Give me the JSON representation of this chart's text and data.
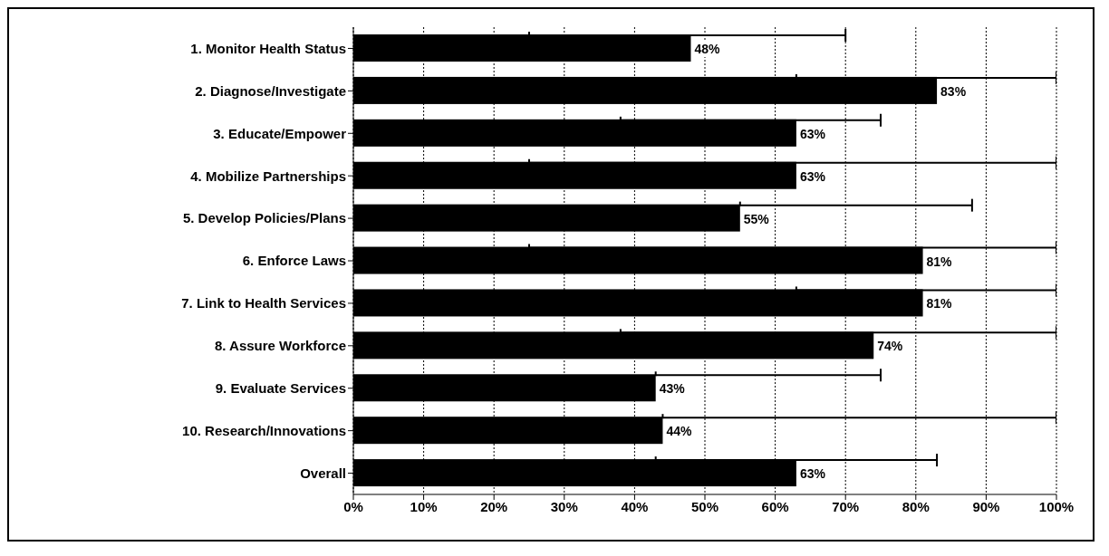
{
  "chart_data": {
    "type": "bar",
    "orientation": "horizontal",
    "categories": [
      "1.  Monitor Health Status",
      "2.  Diagnose/Investigate",
      "3.  Educate/Empower",
      "4.  Mobilize Partnerships",
      "5.  Develop Policies/Plans",
      "6.  Enforce Laws",
      "7.  Link to Health Services",
      "8.  Assure Workforce",
      "9.  Evaluate Services",
      "10.  Research/Innovations",
      "Overall"
    ],
    "values": [
      48,
      83,
      63,
      63,
      55,
      81,
      81,
      74,
      43,
      44,
      63
    ],
    "value_labels": [
      "48%",
      "83%",
      "63%",
      "63%",
      "55%",
      "81%",
      "81%",
      "74%",
      "43%",
      "44%",
      "63%"
    ],
    "errors": [
      [
        25,
        70
      ],
      [
        63,
        100
      ],
      [
        38,
        75
      ],
      [
        25,
        100
      ],
      [
        55,
        88
      ],
      [
        25,
        100
      ],
      [
        63,
        100
      ],
      [
        38,
        100
      ],
      [
        43,
        75
      ],
      [
        44,
        100
      ],
      [
        43,
        83
      ]
    ],
    "color": "#000000",
    "xlim": [
      0,
      100
    ],
    "xticks": [
      {
        "value": 0,
        "label": "0%"
      },
      {
        "value": 10,
        "label": "10%"
      },
      {
        "value": 20,
        "label": "20%"
      },
      {
        "value": 30,
        "label": "30%"
      },
      {
        "value": 40,
        "label": "40%"
      },
      {
        "value": 50,
        "label": "50%"
      },
      {
        "value": 60,
        "label": "60%"
      },
      {
        "value": 70,
        "label": "70%"
      },
      {
        "value": 80,
        "label": "80%"
      },
      {
        "value": 90,
        "label": "90%"
      },
      {
        "value": 100,
        "label": "100%"
      }
    ],
    "grid": "x"
  }
}
